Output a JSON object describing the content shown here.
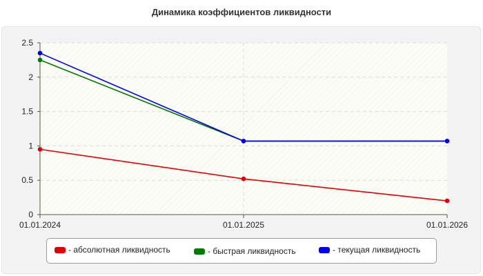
{
  "chart_data": {
    "type": "line",
    "title": "Динамика коэффициентов ликвидности",
    "xlabel": "",
    "ylabel": "",
    "categories": [
      "01.01.2024",
      "01.01.2025",
      "01.01.2026"
    ],
    "ylim": [
      0,
      2.5
    ],
    "yticks": [
      "0",
      "0.5",
      "1",
      "1.5",
      "2",
      "2.5"
    ],
    "grid": true,
    "legend_position": "bottom",
    "series": [
      {
        "name": "- абсолютная ликвидность",
        "color": "#e00000",
        "values": [
          0.95,
          0.52,
          0.2
        ]
      },
      {
        "name": "- быстрая ликвидность",
        "color": "#007a00",
        "values": [
          2.25,
          1.07,
          1.07
        ]
      },
      {
        "name": "- текущая ликвидность",
        "color": "#0000ee",
        "values": [
          2.35,
          1.07,
          1.07
        ]
      }
    ]
  }
}
